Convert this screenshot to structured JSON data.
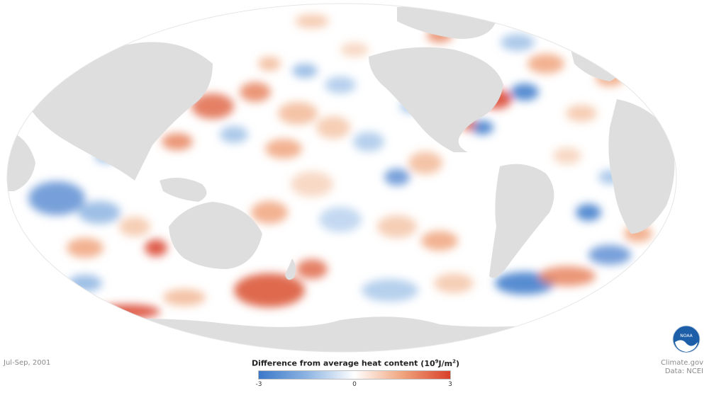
{
  "map": {
    "period": "Jul-Sep, 2001",
    "projection": "Mollweide",
    "land_color": "#dedede",
    "ocean_neutral": "#ffffff",
    "positive_color": "#d9402a",
    "negative_color": "#3b78c9"
  },
  "legend": {
    "title": "Difference from average heat content",
    "unit_prefix": "(10",
    "unit_exp": "9",
    "unit_mid": "J/m",
    "unit_exp2": "2",
    "unit_suffix": ")",
    "min_label": "-3",
    "mid_label": "0",
    "max_label": "3"
  },
  "credits": {
    "source_line": "Climate.gov",
    "data_line": "Data: NCEI",
    "logo_text": "NOAA"
  }
}
